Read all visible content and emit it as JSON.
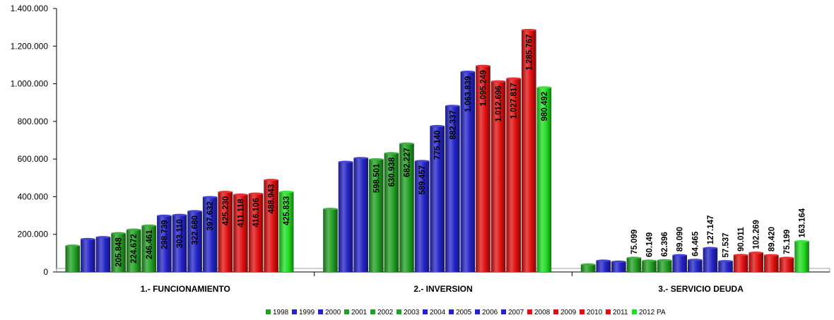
{
  "chart_data": {
    "type": "bar",
    "categories": [
      "1.- FUNCIONAMIENTO",
      "2.- INVERSION",
      "3.- SERVICIO DEUDA"
    ],
    "yticks": [
      "0",
      "200.000",
      "400.000",
      "600.000",
      "800.000",
      "1.000.000",
      "1.200.000",
      "1.400.000"
    ],
    "ylim": [
      0,
      1400000
    ],
    "grid": false,
    "legend_position": "bottom",
    "series": [
      {
        "name": "1998",
        "color": "#22a022",
        "values": [
          140000,
          335000,
          40000
        ],
        "labels": [
          "",
          "",
          ""
        ]
      },
      {
        "name": "1999",
        "color": "#2424c8",
        "values": [
          175000,
          585000,
          60000
        ],
        "labels": [
          "",
          "",
          ""
        ]
      },
      {
        "name": "2000",
        "color": "#2424c8",
        "values": [
          185000,
          605000,
          55000
        ],
        "labels": [
          "",
          "",
          ""
        ]
      },
      {
        "name": "2001",
        "color": "#22a022",
        "values": [
          205848,
          598501,
          75099
        ],
        "labels": [
          "205.848",
          "598.501",
          "75.099"
        ]
      },
      {
        "name": "2002",
        "color": "#22a022",
        "values": [
          224672,
          630938,
          60149
        ],
        "labels": [
          "224.672",
          "630.938",
          "60.149"
        ]
      },
      {
        "name": "2003",
        "color": "#22a022",
        "values": [
          246461,
          682227,
          62396
        ],
        "labels": [
          "246.461",
          "682.227",
          "62.396"
        ]
      },
      {
        "name": "2004",
        "color": "#2424c8",
        "values": [
          298739,
          589457,
          89090
        ],
        "labels": [
          "298.739",
          "589.457",
          "89.090"
        ]
      },
      {
        "name": "2005",
        "color": "#2424c8",
        "values": [
          303110,
          775140,
          64465
        ],
        "labels": [
          "303.110",
          "775.140",
          "64.465"
        ]
      },
      {
        "name": "2006",
        "color": "#2424c8",
        "values": [
          322680,
          882337,
          127147
        ],
        "labels": [
          "322.680",
          "882.337",
          "127.147"
        ]
      },
      {
        "name": "2007",
        "color": "#2424c8",
        "values": [
          397632,
          1063839,
          57537
        ],
        "labels": [
          "397.632",
          "1.063.839",
          "57.537"
        ]
      },
      {
        "name": "2008",
        "color": "#e01010",
        "values": [
          425230,
          1095249,
          90011
        ],
        "labels": [
          "425.230",
          "1.095.249",
          "90.011"
        ]
      },
      {
        "name": "2009",
        "color": "#e01010",
        "values": [
          411118,
          1012696,
          102269
        ],
        "labels": [
          "411.118",
          "1.012.696",
          "102.269"
        ]
      },
      {
        "name": "2010",
        "color": "#e01010",
        "values": [
          416106,
          1027817,
          89420
        ],
        "labels": [
          "416.106",
          "1.027.817",
          "89.420"
        ]
      },
      {
        "name": "2011",
        "color": "#e01010",
        "values": [
          488943,
          1285767,
          75199
        ],
        "labels": [
          "488.943",
          "1.285.767",
          "75.199"
        ]
      },
      {
        "name": "2012 PA",
        "color": "#22dd22",
        "values": [
          425833,
          980492,
          163164
        ],
        "labels": [
          "425.833",
          "980.492",
          "163.164"
        ]
      }
    ]
  }
}
